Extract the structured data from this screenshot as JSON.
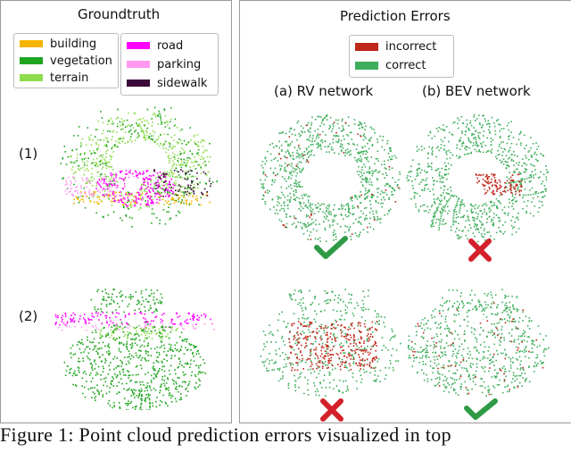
{
  "left_panel": {
    "title": "Groundtruth",
    "legend_col1": [
      {
        "label": "building",
        "color": "#f5b400"
      },
      {
        "label": "vegetation",
        "color": "#1fa51f"
      },
      {
        "label": "terrain",
        "color": "#8fdc4f"
      }
    ],
    "legend_col2": [
      {
        "label": "road",
        "color": "#ff00ff"
      },
      {
        "label": "parking",
        "color": "#ff99ee"
      },
      {
        "label": "sidewalk",
        "color": "#3b0a3b"
      }
    ],
    "rows": [
      {
        "label": "(1)"
      },
      {
        "label": "(2)"
      }
    ]
  },
  "right_panel": {
    "title": "Prediction Errors",
    "legend": [
      {
        "label": "incorrect",
        "color": "#c0281a"
      },
      {
        "label": "correct",
        "color": "#3fae5c"
      }
    ],
    "columns": [
      {
        "label": "(a) RV network"
      },
      {
        "label": "(b) BEV network"
      }
    ],
    "marks": [
      {
        "row": 1,
        "col": "a",
        "icon": "check-icon"
      },
      {
        "row": 1,
        "col": "b",
        "icon": "cross-icon"
      },
      {
        "row": 2,
        "col": "a",
        "icon": "cross-icon"
      },
      {
        "row": 2,
        "col": "b",
        "icon": "check-icon"
      }
    ]
  },
  "colors": {
    "check": "#2e9a45",
    "cross": "#d4202a"
  },
  "caption": "Figure 1: Point cloud prediction errors visualized in top"
}
